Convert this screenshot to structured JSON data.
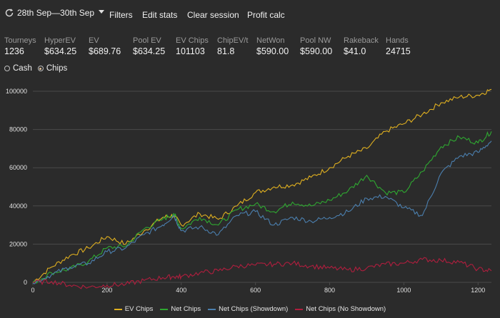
{
  "header": {
    "date_range": "28th Sep—30th Sep",
    "menu": [
      "Filters",
      "Edit stats",
      "Clear session",
      "Profit calc"
    ]
  },
  "stats": [
    {
      "label": "Tourneys",
      "value": "1236"
    },
    {
      "label": "HyperEV",
      "value": "$634.25"
    },
    {
      "label": "EV",
      "value": "$689.76"
    },
    {
      "label": "Pool EV",
      "value": "$634.25"
    },
    {
      "label": "EV Chips",
      "value": "101103"
    },
    {
      "label": "ChipEV/t",
      "value": "81.8"
    },
    {
      "label": "NetWon",
      "value": "$590.00"
    },
    {
      "label": "Pool NW",
      "value": "$590.00"
    },
    {
      "label": "Rakeback",
      "value": "$41.0"
    },
    {
      "label": "Hands",
      "value": "24715"
    }
  ],
  "mode": {
    "options": [
      "Cash",
      "Chips"
    ],
    "selected": "Chips"
  },
  "chart_data": {
    "type": "line",
    "xlim": [
      0,
      1236
    ],
    "ylim": [
      0,
      100000
    ],
    "x_ticks": [
      0,
      200,
      400,
      600,
      800,
      1000,
      1200
    ],
    "y_ticks": [
      0,
      20000,
      40000,
      60000,
      80000,
      100000
    ],
    "x_tick_labels": [
      "0",
      "200",
      "400",
      "600",
      "800",
      "1000",
      "1200"
    ],
    "y_tick_labels": [
      "0",
      "20000",
      "40000",
      "60000",
      "80000",
      "100000"
    ],
    "grid": "horizontal",
    "legend_position": "bottom",
    "colors": {
      "background": "#2b2b2b",
      "grid": "#4a4a4a",
      "axis_text": "#e0e0e0"
    },
    "x": [
      0,
      50,
      100,
      150,
      200,
      250,
      300,
      350,
      380,
      400,
      450,
      500,
      550,
      600,
      650,
      700,
      750,
      800,
      850,
      900,
      950,
      1000,
      1050,
      1100,
      1150,
      1200,
      1236
    ],
    "series": [
      {
        "name": "EV Chips",
        "color": "#e0b020",
        "values": [
          0,
          8000,
          14000,
          18000,
          24000,
          20000,
          27000,
          34000,
          35000,
          30000,
          36000,
          33000,
          40000,
          47000,
          50000,
          51000,
          55000,
          60000,
          66000,
          70000,
          79000,
          83000,
          88000,
          94000,
          97000,
          98000,
          101000
        ]
      },
      {
        "name": "Net Chips",
        "color": "#2fa831",
        "values": [
          -500,
          5000,
          7000,
          11000,
          18000,
          19000,
          28000,
          33000,
          36000,
          28000,
          34000,
          30000,
          38000,
          41000,
          37000,
          42000,
          40000,
          43000,
          48000,
          56000,
          47000,
          47000,
          58000,
          71000,
          76000,
          73000,
          79000
        ]
      },
      {
        "name": "Net Chips (Showdown)",
        "color": "#4b7fae",
        "values": [
          -500,
          4000,
          8000,
          10000,
          16000,
          18000,
          25000,
          30000,
          35000,
          27000,
          29000,
          25000,
          35000,
          37000,
          30000,
          34000,
          32000,
          34000,
          37000,
          44000,
          45000,
          39000,
          35000,
          57000,
          66000,
          68000,
          74000
        ]
      },
      {
        "name": "Net Chips (No Showdown)",
        "color": "#b01e3e",
        "values": [
          0,
          500,
          -1500,
          -2500,
          -1500,
          -1000,
          1000,
          2500,
          3000,
          3000,
          5000,
          6000,
          8500,
          9000,
          9500,
          10000,
          8500,
          7500,
          6500,
          7500,
          9500,
          10000,
          12000,
          11500,
          10500,
          7000,
          6000
        ]
      }
    ]
  }
}
